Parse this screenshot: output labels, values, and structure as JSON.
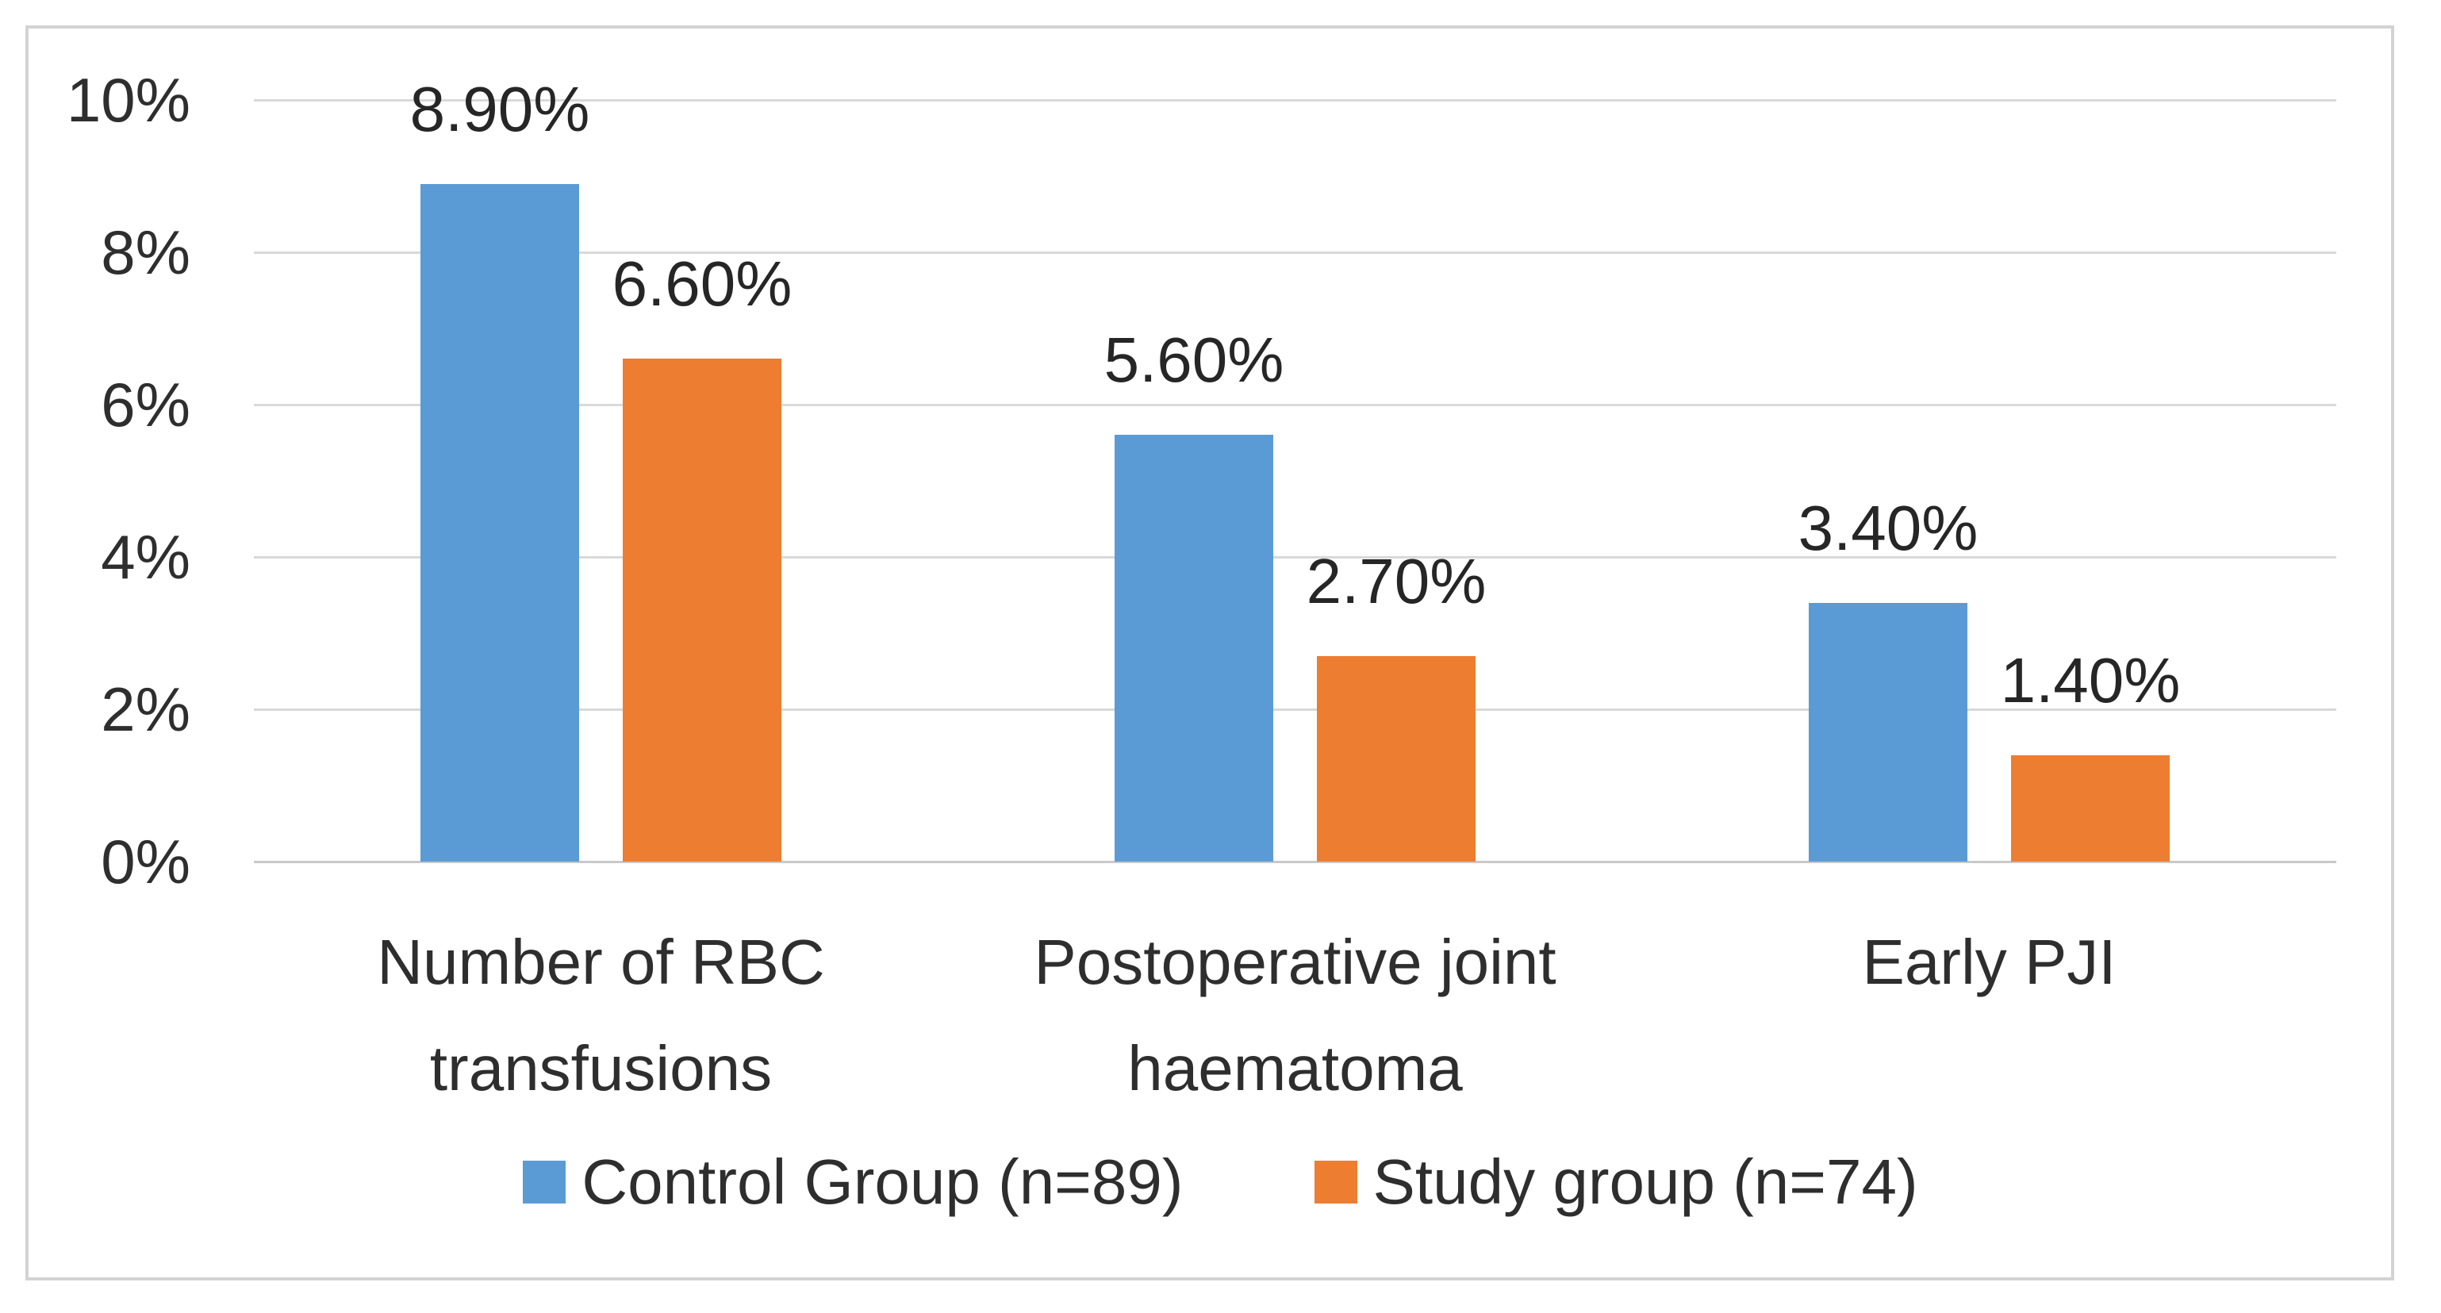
{
  "chart_data": {
    "type": "bar",
    "title": "",
    "xlabel": "",
    "ylabel": "",
    "categories": [
      "Number of RBC transfusions",
      "Postoperative joint haematoma",
      "Early PJI"
    ],
    "category_lines": [
      [
        "Number of RBC",
        "transfusions"
      ],
      [
        "Postoperative joint",
        "haematoma"
      ],
      [
        "Early PJI"
      ]
    ],
    "series": [
      {
        "name": "Control Group (n=89)",
        "color": "#5B9BD5",
        "values": [
          8.9,
          5.6,
          3.4
        ],
        "data_labels": [
          "8.90%",
          "5.60%",
          "3.40%"
        ]
      },
      {
        "name": "Study group (n=74)",
        "color": "#ED7D31",
        "values": [
          6.6,
          2.7,
          1.4
        ],
        "data_labels": [
          "6.60%",
          "2.70%",
          "1.40%"
        ]
      }
    ],
    "ylim": [
      0,
      10
    ],
    "ytick_step": 2,
    "yticks": [
      "10%",
      "8%",
      "6%",
      "4%",
      "2%",
      "0%"
    ],
    "ytick_values": [
      10,
      8,
      6,
      4,
      2,
      0
    ],
    "grid": true,
    "gridline_color": "#D9D9D9",
    "axis_line_color": "#C9C9C9",
    "frame_border_color": "#D3D3D3",
    "text_color": "#2E2E2E",
    "legend_position": "bottom"
  }
}
